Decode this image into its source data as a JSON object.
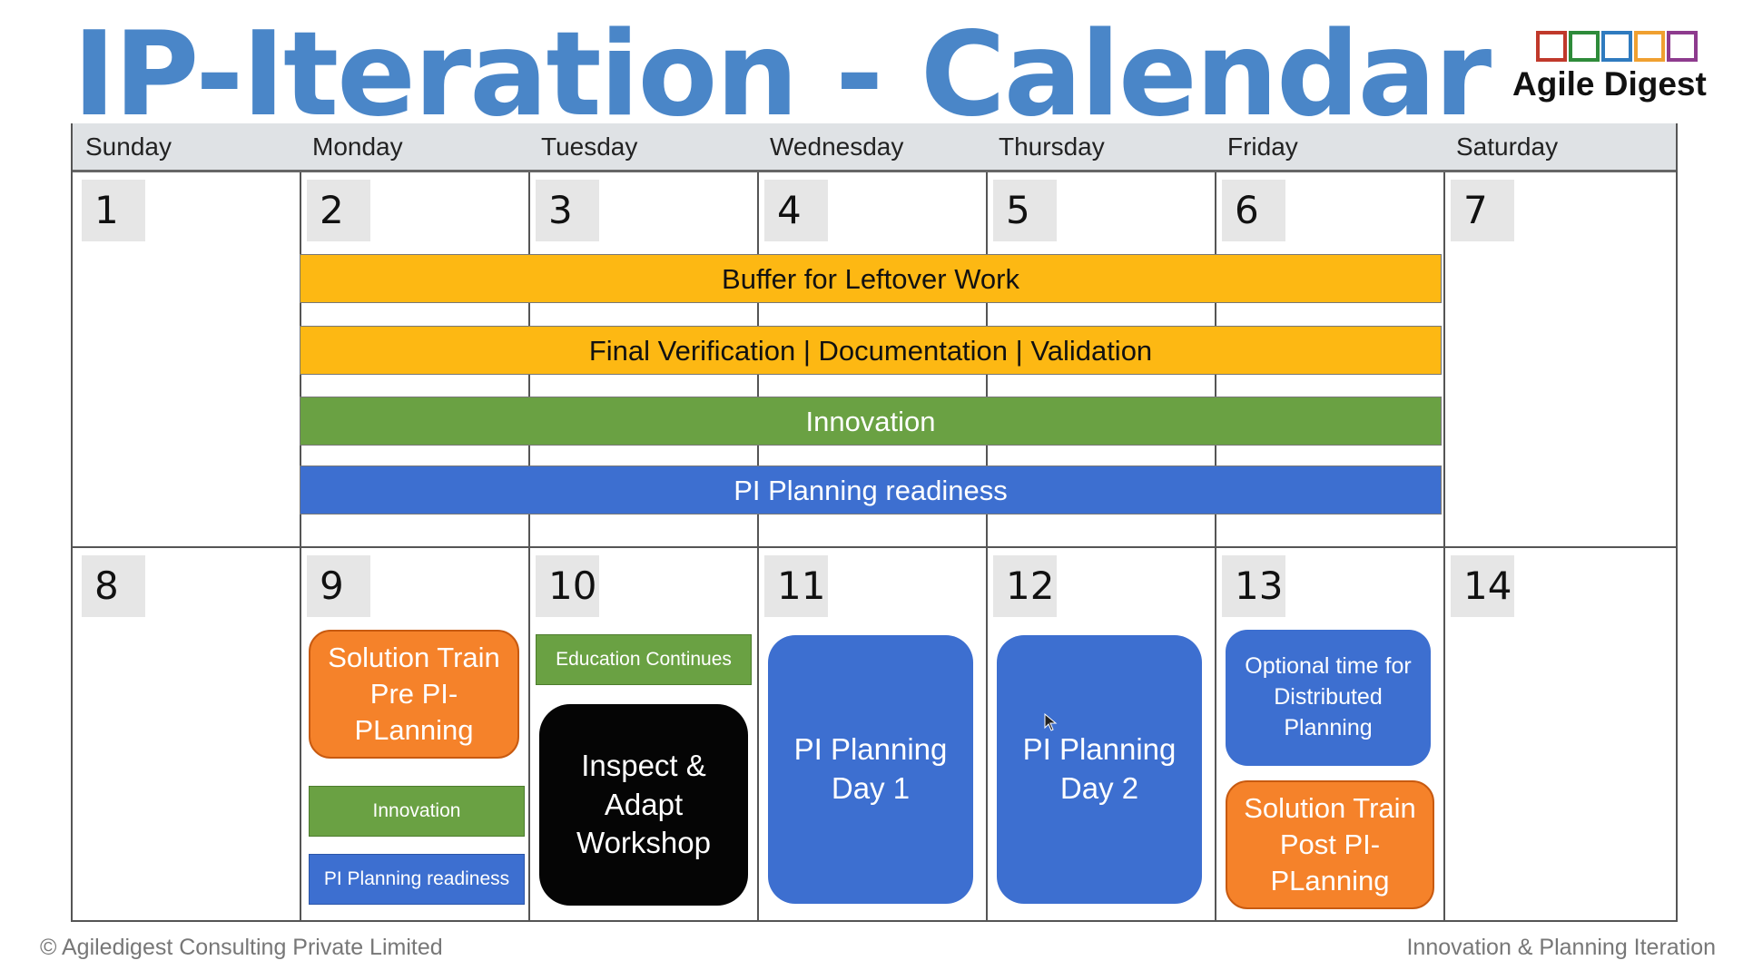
{
  "title": "IP-Iteration - Calendar",
  "logo": {
    "text": "Agile Digest",
    "square_colors": [
      "#c0392b",
      "#2e8b3a",
      "#2f7bbf",
      "#f0a030",
      "#8e3b8e"
    ]
  },
  "weekdays": [
    "Sunday",
    "Monday",
    "Tuesday",
    "Wednesday",
    "Thursday",
    "Friday",
    "Saturday"
  ],
  "week1": {
    "dates": [
      "1",
      "2",
      "3",
      "4",
      "5",
      "6",
      "7"
    ],
    "bars": [
      {
        "label": "Buffer for Leftover Work",
        "color": "yellow"
      },
      {
        "label": "Final Verification | Documentation | Validation",
        "color": "yellow"
      },
      {
        "label": "Innovation",
        "color": "green"
      },
      {
        "label": "PI Planning readiness",
        "color": "blue"
      }
    ]
  },
  "week2": {
    "dates": [
      "8",
      "9",
      "10",
      "11",
      "12",
      "13",
      "14"
    ],
    "monday": {
      "solution_train_pre": "Solution Train Pre PI-PLanning",
      "innovation": "Innovation",
      "pi_readiness": "PI Planning readiness"
    },
    "tuesday": {
      "education": "Education Continues",
      "inspect_adapt": "Inspect & Adapt Workshop"
    },
    "wednesday": {
      "pi_day1": "PI Planning Day 1"
    },
    "thursday": {
      "pi_day2": "PI Planning Day 2"
    },
    "friday": {
      "optional_time": "Optional time for Distributed Planning",
      "solution_train_post": "Solution Train Post PI-PLanning"
    }
  },
  "footer": {
    "left": "© Agiledigest Consulting Private Limited",
    "right": "Innovation & Planning Iteration"
  }
}
